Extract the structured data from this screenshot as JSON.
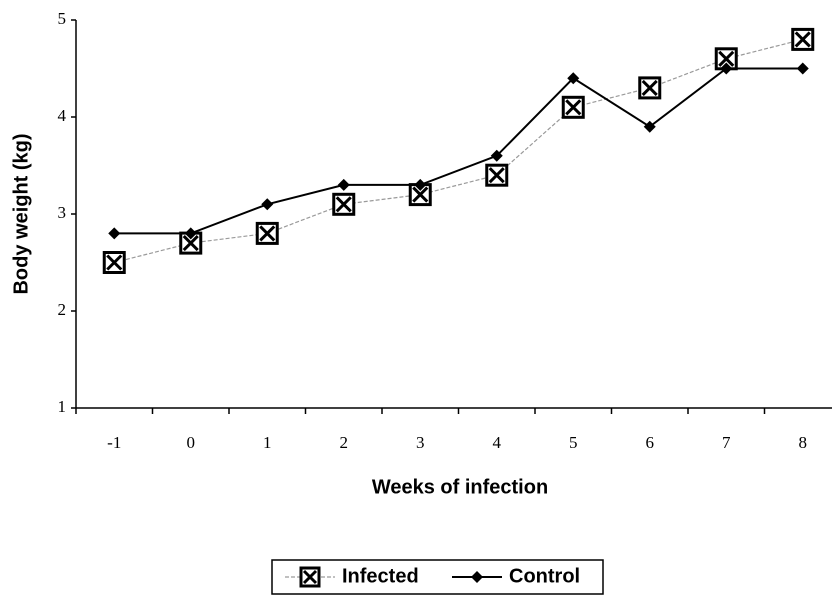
{
  "chart_data": {
    "type": "line",
    "x_label": "Weeks of infection",
    "y_label": "Body weight (kg)",
    "categories": [
      "-1",
      "0",
      "1",
      "2",
      "3",
      "4",
      "5",
      "6",
      "7",
      "8"
    ],
    "series": [
      {
        "name": "Infected",
        "color": "#9a9a9a",
        "values": [
          2.5,
          2.7,
          2.8,
          3.1,
          3.2,
          3.4,
          4.1,
          4.3,
          4.6,
          4.8
        ]
      },
      {
        "name": "Control",
        "color": "#000000",
        "values": [
          2.8,
          2.8,
          3.1,
          3.3,
          3.3,
          3.6,
          4.4,
          3.9,
          4.5,
          4.5
        ]
      }
    ],
    "ylim": [
      1,
      5
    ],
    "yticks": [
      1,
      2,
      3,
      4,
      5
    ],
    "legend": "bottom"
  }
}
